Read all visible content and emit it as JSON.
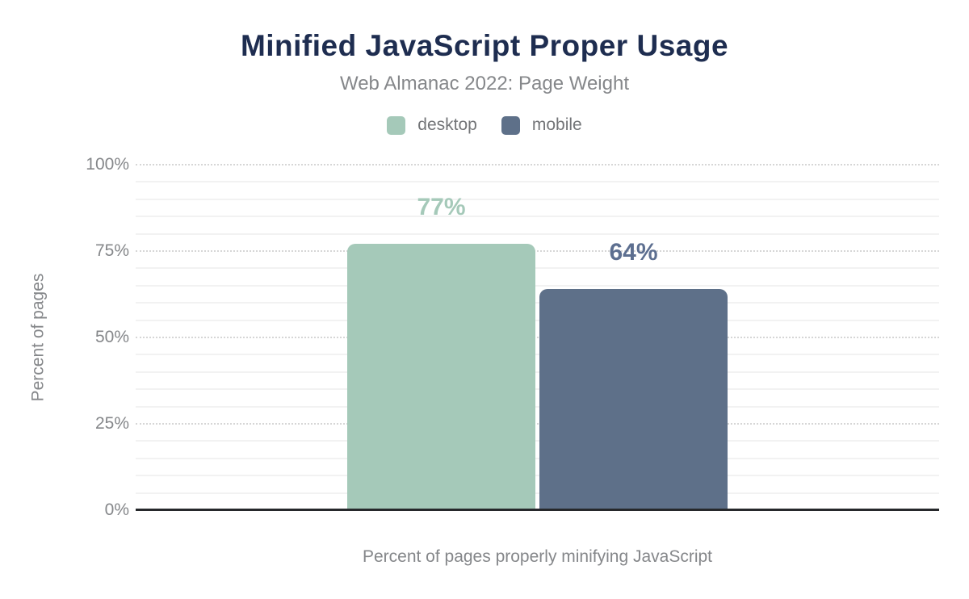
{
  "chart_data": {
    "type": "bar",
    "title": "Minified JavaScript Proper Usage",
    "subtitle": "Web Almanac 2022: Page Weight",
    "xlabel": "Percent of pages properly minifying JavaScript",
    "ylabel": "Percent of pages",
    "categories": [
      "Percent of pages properly minifying JavaScript"
    ],
    "series": [
      {
        "name": "desktop",
        "values": [
          77
        ],
        "value_label": "77%",
        "color": "#a5c9b9",
        "label_color": "#a5c9b9"
      },
      {
        "name": "mobile",
        "values": [
          64
        ],
        "value_label": "64%",
        "color": "#5e7089",
        "label_color": "#5d6f90"
      }
    ],
    "ylim": [
      0,
      100
    ],
    "yticks": [
      {
        "value": 0,
        "label": "0%"
      },
      {
        "value": 25,
        "label": "25%"
      },
      {
        "value": 50,
        "label": "50%"
      },
      {
        "value": 75,
        "label": "75%"
      },
      {
        "value": 100,
        "label": "100%"
      }
    ],
    "minor_grid_step": 5,
    "grid": true,
    "legend_position": "top"
  },
  "colors": {
    "background": "#ffffff",
    "title": "#1e2d50",
    "subtitle": "#85878a",
    "legend_text": "#737578",
    "axis_text": "#85878a",
    "axis_line": "#26282b",
    "major_grid": "#d6d6d6",
    "minor_grid": "#f2f2f2"
  }
}
